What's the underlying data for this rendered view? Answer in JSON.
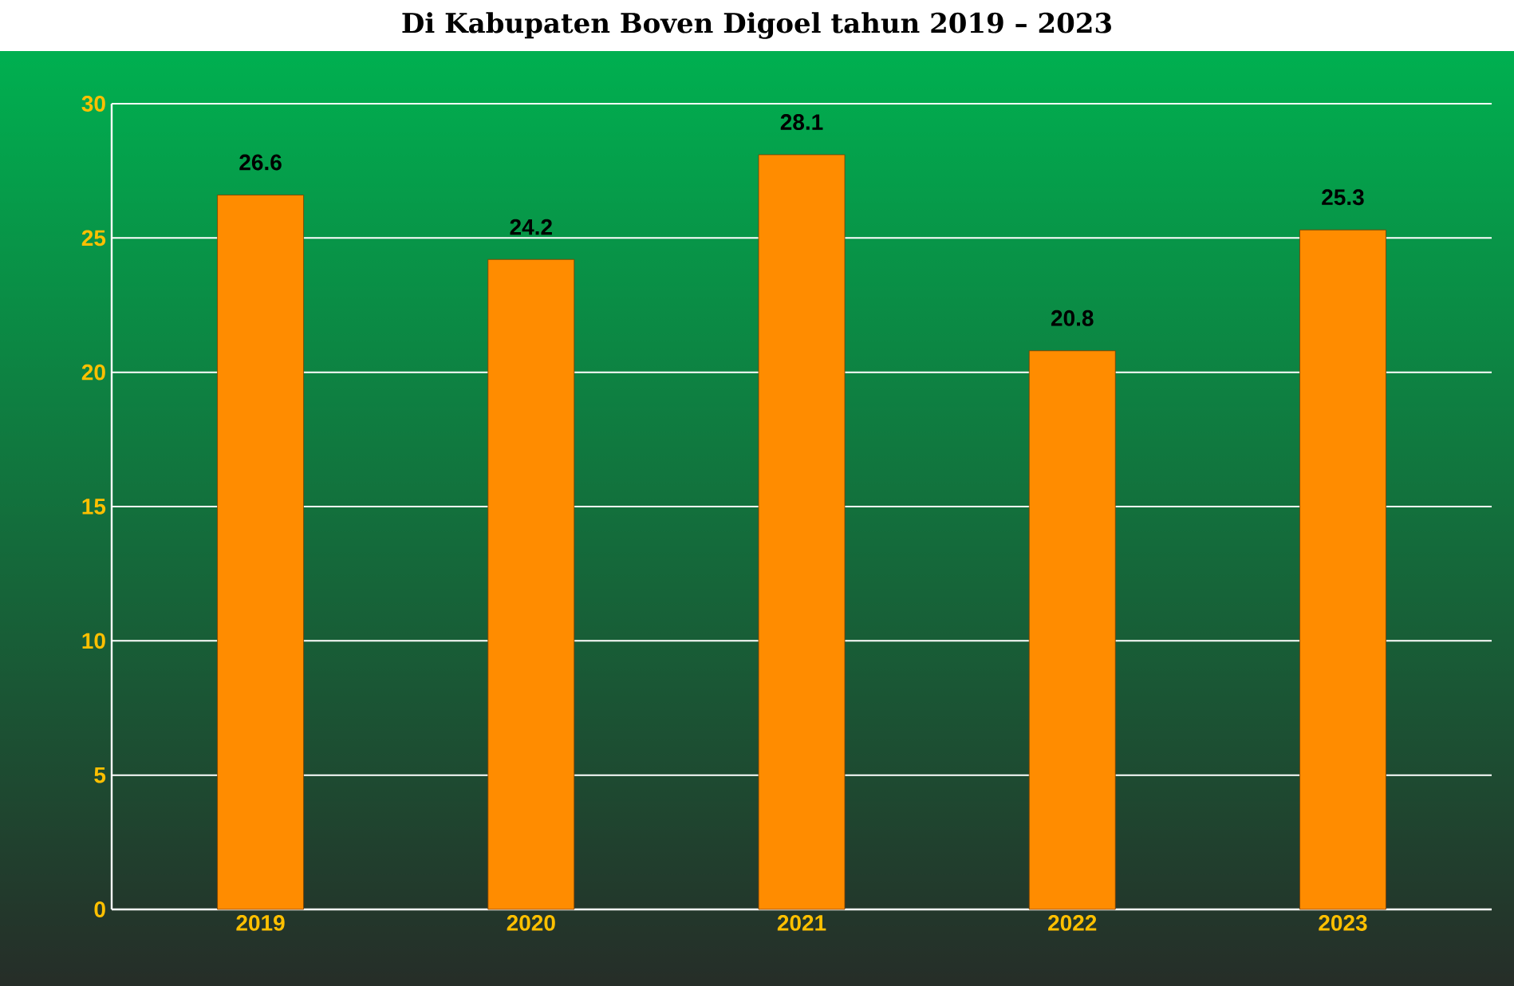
{
  "chart_data": {
    "type": "bar",
    "title": "Di Kabupaten Boven Digoel tahun 2019 – 2023",
    "categories": [
      "2019",
      "2020",
      "2021",
      "2022",
      "2023"
    ],
    "values": [
      26.6,
      24.2,
      28.1,
      20.8,
      25.3
    ],
    "color": "#ff8c00",
    "ylim": [
      0,
      30
    ],
    "yticks": [
      0,
      5,
      10,
      15,
      20,
      25,
      30
    ],
    "grid": "y",
    "data_labels": true
  }
}
